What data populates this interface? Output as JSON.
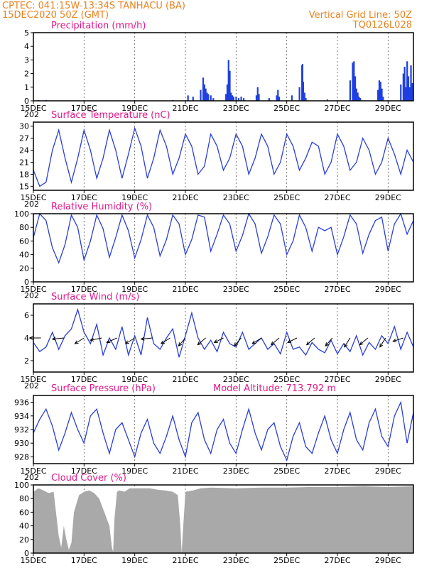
{
  "header": {
    "line1": "CPTEC:   041:15W-13:34S   TANHACU (BA)",
    "line2": "15DEC2020 50Z (GMT)",
    "grid_note": "Vertical Grid Line: 50Z",
    "code": "TQ0126L028"
  },
  "model_altitude": "Model Altitude: 713.792 m",
  "colors": {
    "header": "#e8821e",
    "title": "#e0198a",
    "line": "#2a3fd6",
    "bar": "#1f3fe0",
    "cloud": "#a9a9a9",
    "wind_arrow": "#000000"
  },
  "x_axis": {
    "days": [
      15,
      30
    ],
    "tick_labels": [
      "15DEC",
      "17DEC",
      "19DEC",
      "21DEC",
      "23DEC",
      "25DEC",
      "27DEC",
      "29DEC"
    ],
    "tick_days": [
      15,
      17,
      19,
      21,
      23,
      25,
      27,
      29
    ],
    "year_fragment": "202"
  },
  "chart_data": [
    {
      "type": "bar",
      "title": "Precipitation (mm/h)",
      "ylim": [
        0,
        5
      ],
      "yticks": [
        0,
        1,
        2,
        3,
        4,
        5
      ],
      "x": [
        15.2,
        15.5,
        16.0,
        17.0,
        18.5,
        19.5,
        20.5,
        21.1,
        21.3,
        21.6,
        21.7,
        21.75,
        21.8,
        21.85,
        21.9,
        22.0,
        22.1,
        22.6,
        22.65,
        22.7,
        22.75,
        22.8,
        22.85,
        22.9,
        23.0,
        23.1,
        23.2,
        23.3,
        23.8,
        23.85,
        23.9,
        24.3,
        24.6,
        24.65,
        24.7,
        25.2,
        25.5,
        25.6,
        25.62,
        25.65,
        25.7,
        25.75,
        26.6,
        27.5,
        27.6,
        27.65,
        27.7,
        27.75,
        27.8,
        27.85,
        27.9,
        28.6,
        28.65,
        28.7,
        28.75,
        28.8,
        29.5,
        29.6,
        29.65,
        29.7,
        29.75,
        29.8,
        29.85,
        29.9,
        29.95
      ],
      "values": [
        0.05,
        0.05,
        0.03,
        0.03,
        0.03,
        0.03,
        0.05,
        0.4,
        0.3,
        0.8,
        1.7,
        1.2,
        0.9,
        0.6,
        0.5,
        0.4,
        0.2,
        0.5,
        1.2,
        3.0,
        2.2,
        0.6,
        0.4,
        0.3,
        0.3,
        0.2,
        0.3,
        0.2,
        0.4,
        1.0,
        0.5,
        0.2,
        0.4,
        0.8,
        0.3,
        0.4,
        1.0,
        2.6,
        2.7,
        1.4,
        0.6,
        0.2,
        0.1,
        1.5,
        2.8,
        2.9,
        1.8,
        0.9,
        0.6,
        0.3,
        0.2,
        0.8,
        1.5,
        1.4,
        0.9,
        0.3,
        1.2,
        2.0,
        2.5,
        1.0,
        2.9,
        1.8,
        1.0,
        2.6,
        1.3
      ]
    },
    {
      "type": "line",
      "title": "Surface Temperature (nC)",
      "ylim": [
        14,
        31
      ],
      "yticks": [
        15,
        18,
        21,
        24,
        27,
        30
      ],
      "x": [
        15.0,
        15.25,
        15.5,
        15.75,
        16.0,
        16.25,
        16.5,
        16.75,
        17.0,
        17.25,
        17.5,
        17.75,
        18.0,
        18.25,
        18.5,
        18.75,
        19.0,
        19.25,
        19.5,
        19.75,
        20.0,
        20.25,
        20.5,
        20.75,
        21.0,
        21.25,
        21.5,
        21.75,
        22.0,
        22.25,
        22.5,
        22.75,
        23.0,
        23.25,
        23.5,
        23.75,
        24.0,
        24.25,
        24.5,
        24.75,
        25.0,
        25.25,
        25.5,
        25.75,
        26.0,
        26.25,
        26.5,
        26.75,
        27.0,
        27.25,
        27.5,
        27.75,
        28.0,
        28.25,
        28.5,
        28.75,
        29.0,
        29.25,
        29.5,
        29.75,
        30.0
      ],
      "values": [
        19,
        15,
        16,
        24,
        29,
        22,
        16,
        22,
        29,
        24,
        17,
        22,
        29,
        24,
        17,
        23,
        29.5,
        25,
        17,
        22,
        29,
        25,
        18,
        22,
        28,
        25,
        18,
        20,
        28,
        25,
        19,
        22,
        28,
        25,
        18,
        22,
        28,
        25,
        18,
        21,
        28,
        25,
        19,
        22,
        26,
        25,
        18,
        21,
        28,
        25,
        19,
        21,
        27,
        24,
        18,
        21,
        27,
        23,
        18,
        24,
        21
      ]
    },
    {
      "type": "line",
      "title": "Relative Humidity (%)",
      "ylim": [
        0,
        100
      ],
      "yticks": [
        0,
        20,
        40,
        60,
        80,
        100
      ],
      "x": [
        15.0,
        15.25,
        15.5,
        15.75,
        16.0,
        16.25,
        16.5,
        16.75,
        17.0,
        17.25,
        17.5,
        17.75,
        18.0,
        18.25,
        18.5,
        18.75,
        19.0,
        19.25,
        19.5,
        19.75,
        20.0,
        20.25,
        20.5,
        20.75,
        21.0,
        21.25,
        21.5,
        21.75,
        22.0,
        22.25,
        22.5,
        22.75,
        23.0,
        23.25,
        23.5,
        23.75,
        24.0,
        24.25,
        24.5,
        24.75,
        25.0,
        25.25,
        25.5,
        25.75,
        26.0,
        26.25,
        26.5,
        26.75,
        27.0,
        27.25,
        27.5,
        27.75,
        28.0,
        28.25,
        28.5,
        28.75,
        29.0,
        29.25,
        29.5,
        29.75,
        30.0
      ],
      "values": [
        65,
        100,
        90,
        50,
        28,
        55,
        98,
        80,
        32,
        60,
        98,
        78,
        36,
        65,
        98,
        75,
        35,
        62,
        98,
        80,
        38,
        62,
        98,
        85,
        40,
        62,
        98,
        95,
        45,
        70,
        98,
        85,
        45,
        68,
        100,
        85,
        42,
        66,
        98,
        85,
        40,
        60,
        98,
        80,
        45,
        80,
        75,
        80,
        40,
        66,
        98,
        85,
        42,
        70,
        90,
        95,
        45,
        85,
        100,
        70,
        90
      ]
    },
    {
      "type": "line",
      "title": "Surface Wind (m/s)",
      "ylim": [
        1,
        7
      ],
      "yticks": [
        2,
        4,
        6
      ],
      "x": [
        15.0,
        15.25,
        15.5,
        15.75,
        16.0,
        16.25,
        16.5,
        16.75,
        17.0,
        17.25,
        17.5,
        17.75,
        18.0,
        18.25,
        18.5,
        18.75,
        19.0,
        19.25,
        19.5,
        19.75,
        20.0,
        20.25,
        20.5,
        20.75,
        21.0,
        21.25,
        21.5,
        21.75,
        22.0,
        22.25,
        22.5,
        22.75,
        23.0,
        23.25,
        23.5,
        23.75,
        24.0,
        24.25,
        24.5,
        24.75,
        25.0,
        25.25,
        25.5,
        25.75,
        26.0,
        26.25,
        26.5,
        26.75,
        27.0,
        27.25,
        27.5,
        27.75,
        28.0,
        28.25,
        28.5,
        28.75,
        29.0,
        29.25,
        29.5,
        29.75,
        30.0
      ],
      "values": [
        3.6,
        2.8,
        3.2,
        4.5,
        3.0,
        4.2,
        4.8,
        6.5,
        4.5,
        3.5,
        5.2,
        2.5,
        4.0,
        3.0,
        5.0,
        2.5,
        4.2,
        2.5,
        5.8,
        3.5,
        3.0,
        4.0,
        4.8,
        2.3,
        4.2,
        6.2,
        4.0,
        3.0,
        3.8,
        2.8,
        4.5,
        3.5,
        3.2,
        4.5,
        3.0,
        3.5,
        4.0,
        3.0,
        3.5,
        2.6,
        4.5,
        3.0,
        3.2,
        2.5,
        3.6,
        3.0,
        2.7,
        3.8,
        2.6,
        3.5,
        2.8,
        4.2,
        2.5,
        3.6,
        3.0,
        4.2,
        3.5,
        5.0,
        3.0,
        4.5,
        3.2
      ],
      "arrows": {
        "x": [
          15.3,
          16.2,
          17.0,
          17.7,
          18.3,
          19.0,
          19.7,
          20.4,
          21.0,
          21.8,
          22.5,
          23.2,
          24.0,
          24.7,
          25.4,
          26.1,
          26.8,
          27.5,
          28.2,
          28.9,
          29.6
        ],
        "u": [
          -1.0,
          -1.0,
          -0.8,
          -1.0,
          -0.9,
          -0.8,
          -1.0,
          -0.8,
          -0.6,
          -0.7,
          -0.8,
          -0.6,
          -0.8,
          -0.7,
          -0.8,
          -0.7,
          -0.6,
          -0.5,
          -0.7,
          -0.5,
          -0.9
        ],
        "v": [
          0.0,
          -0.1,
          -0.5,
          -0.2,
          -0.4,
          -0.5,
          -0.1,
          -0.5,
          -0.7,
          -0.6,
          -0.4,
          -0.7,
          -0.5,
          -0.6,
          -0.4,
          -0.6,
          -0.7,
          -0.8,
          -0.6,
          -0.8,
          -0.3
        ]
      }
    },
    {
      "type": "line",
      "title": "Surface Pressure (hPa)",
      "ylim": [
        927,
        937
      ],
      "yticks": [
        928,
        930,
        932,
        934,
        936
      ],
      "x": [
        15.0,
        15.25,
        15.5,
        15.75,
        16.0,
        16.25,
        16.5,
        16.75,
        17.0,
        17.25,
        17.5,
        17.75,
        18.0,
        18.25,
        18.5,
        18.75,
        19.0,
        19.25,
        19.5,
        19.75,
        20.0,
        20.25,
        20.5,
        20.75,
        21.0,
        21.25,
        21.5,
        21.75,
        22.0,
        22.25,
        22.5,
        22.75,
        23.0,
        23.25,
        23.5,
        23.75,
        24.0,
        24.25,
        24.5,
        24.75,
        25.0,
        25.25,
        25.5,
        25.75,
        26.0,
        26.25,
        26.5,
        26.75,
        27.0,
        27.25,
        27.5,
        27.75,
        28.0,
        28.25,
        28.5,
        28.75,
        29.0,
        29.25,
        29.5,
        29.75,
        30.0
      ],
      "values": [
        931.5,
        933.5,
        935.0,
        932.5,
        929.0,
        931.5,
        934.5,
        932.0,
        930.0,
        934.0,
        935.0,
        931.5,
        928.5,
        932.0,
        933.0,
        930.5,
        928.0,
        931.5,
        933.5,
        930.0,
        928.5,
        931.0,
        934.0,
        930.5,
        928.0,
        933.0,
        934.5,
        930.5,
        928.5,
        932.0,
        933.5,
        930.0,
        928.5,
        932.0,
        935.0,
        931.5,
        929.0,
        932.0,
        933.0,
        929.5,
        927.5,
        931.0,
        933.0,
        929.5,
        928.5,
        931.5,
        934.0,
        930.5,
        928.5,
        932.0,
        934.5,
        930.5,
        929.0,
        933.0,
        935.0,
        931.0,
        929.5,
        934.0,
        936.0,
        930.0,
        934.5
      ]
    },
    {
      "type": "area",
      "title": "Cloud Cover (%)",
      "ylim": [
        0,
        100
      ],
      "yticks": [
        0,
        20,
        40,
        60,
        80,
        100
      ],
      "x": [
        15.0,
        15.2,
        15.4,
        15.6,
        15.8,
        16.0,
        16.1,
        16.2,
        16.3,
        16.4,
        16.5,
        16.6,
        16.8,
        17.0,
        17.2,
        17.4,
        17.6,
        17.8,
        18.0,
        18.1,
        18.15,
        18.2,
        18.3,
        18.4,
        18.6,
        18.8,
        19.0,
        19.3,
        19.6,
        19.9,
        20.2,
        20.5,
        20.7,
        20.8,
        20.85,
        20.9,
        21.0,
        21.3,
        21.6,
        22.0,
        23.0,
        24.0,
        25.0,
        26.0,
        27.0,
        28.0,
        29.0,
        30.0
      ],
      "values": [
        90,
        95,
        92,
        88,
        90,
        25,
        8,
        40,
        20,
        5,
        15,
        60,
        85,
        90,
        92,
        88,
        80,
        60,
        40,
        8,
        2,
        50,
        90,
        92,
        90,
        95,
        95,
        95,
        95,
        93,
        92,
        90,
        85,
        40,
        0,
        30,
        90,
        92,
        95,
        96,
        95,
        96,
        96,
        97,
        97,
        98,
        97,
        98
      ]
    }
  ]
}
